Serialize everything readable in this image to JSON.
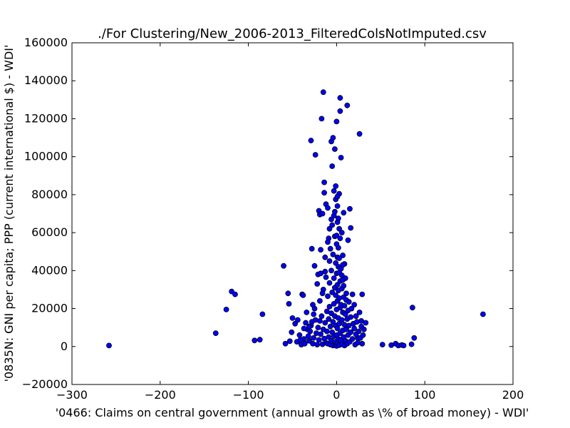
{
  "chart_data": {
    "type": "scatter",
    "title": "./For Clustering/New_2006-2013_FilteredColsNotImputed.csv",
    "xlabel": "'0466: Claims on central government  (annual growth as \\% of broad money) - WDI'",
    "ylabel": "'0835N: GNI per capita; PPP  (current international $) - WDI'",
    "xlim": [
      -300,
      200
    ],
    "ylim": [
      -20000,
      160000
    ],
    "xticks": [
      -300,
      -200,
      -100,
      0,
      100,
      200
    ],
    "xtick_labels": [
      "−300",
      "−200",
      "−100",
      "0",
      "100",
      "200"
    ],
    "yticks": [
      -20000,
      0,
      20000,
      40000,
      60000,
      80000,
      100000,
      120000,
      140000,
      160000
    ],
    "ytick_labels": [
      "−20000",
      "0",
      "20000",
      "40000",
      "60000",
      "80000",
      "100000",
      "120000",
      "140000",
      "160000"
    ],
    "grid": false,
    "marker_color": "#0000ff",
    "points": [
      [
        -258,
        500
      ],
      [
        -137,
        7000
      ],
      [
        -125,
        19500
      ],
      [
        -119,
        29000
      ],
      [
        -115,
        27500
      ],
      [
        -93,
        3200
      ],
      [
        -87,
        3600
      ],
      [
        -84,
        17000
      ],
      [
        -60,
        42500
      ],
      [
        -58,
        1500
      ],
      [
        -55,
        28000
      ],
      [
        -54,
        22500
      ],
      [
        -53,
        2800
      ],
      [
        -51,
        7500
      ],
      [
        -50,
        15000
      ],
      [
        -47,
        12000
      ],
      [
        -44,
        14000
      ],
      [
        -40,
        1000
      ],
      [
        -39,
        27500
      ],
      [
        -38,
        27000
      ],
      [
        -37,
        4000
      ],
      [
        -35,
        12500
      ],
      [
        -33,
        9000
      ],
      [
        -31,
        3000
      ],
      [
        -29,
        108500
      ],
      [
        -28,
        51500
      ],
      [
        -27,
        22000
      ],
      [
        -26,
        17000
      ],
      [
        -25,
        42500
      ],
      [
        -24,
        101000
      ],
      [
        -22,
        33000
      ],
      [
        -21,
        38000
      ],
      [
        -20,
        71500
      ],
      [
        -19,
        69500
      ],
      [
        -18,
        51000
      ],
      [
        -17,
        120000
      ],
      [
        -16,
        70000
      ],
      [
        -15,
        134000
      ],
      [
        -14,
        86500
      ],
      [
        -14,
        81000
      ],
      [
        -12,
        75000
      ],
      [
        -10,
        73000
      ],
      [
        -9,
        57000
      ],
      [
        -8,
        45000
      ],
      [
        -6,
        108000
      ],
      [
        -5,
        64000
      ],
      [
        -5,
        95000
      ],
      [
        -4,
        110000
      ],
      [
        -3,
        82000
      ],
      [
        -2,
        104000
      ],
      [
        -1,
        84500
      ],
      [
        -1,
        77500
      ],
      [
        0,
        118500
      ],
      [
        1,
        74000
      ],
      [
        1,
        65500
      ],
      [
        2,
        52000
      ],
      [
        3,
        80500
      ],
      [
        3,
        62000
      ],
      [
        4,
        131000
      ],
      [
        4,
        124000
      ],
      [
        5,
        99500
      ],
      [
        6,
        60000
      ],
      [
        7,
        48000
      ],
      [
        8,
        70500
      ],
      [
        9,
        43500
      ],
      [
        10,
        36000
      ],
      [
        12,
        127000
      ],
      [
        13,
        56000
      ],
      [
        15,
        72500
      ],
      [
        16,
        62500
      ],
      [
        18,
        27500
      ],
      [
        20,
        22000
      ],
      [
        22,
        16000
      ],
      [
        24,
        4500
      ],
      [
        26,
        112000
      ],
      [
        28,
        13500
      ],
      [
        29,
        27500
      ],
      [
        31,
        9000
      ],
      [
        33,
        12500
      ],
      [
        52,
        1000
      ],
      [
        62,
        700
      ],
      [
        67,
        1500
      ],
      [
        70,
        500
      ],
      [
        74,
        800
      ],
      [
        76,
        500
      ],
      [
        85,
        1200
      ],
      [
        86,
        20500
      ],
      [
        88,
        4500
      ],
      [
        166,
        17000
      ],
      [
        -45,
        2500
      ],
      [
        -42,
        6000
      ],
      [
        -36,
        1500
      ],
      [
        -34,
        18000
      ],
      [
        -32,
        5500
      ],
      [
        -30,
        8000
      ],
      [
        -29,
        11000
      ],
      [
        -27,
        1500
      ],
      [
        -26,
        4500
      ],
      [
        -25,
        20000
      ],
      [
        -24,
        14000
      ],
      [
        -23,
        7000
      ],
      [
        -22,
        1000
      ],
      [
        -21,
        10000
      ],
      [
        -20,
        3500
      ],
      [
        -19,
        24000
      ],
      [
        -18,
        6500
      ],
      [
        -17,
        16000
      ],
      [
        -16,
        1200
      ],
      [
        -15,
        9000
      ],
      [
        -15,
        30000
      ],
      [
        -14,
        4200
      ],
      [
        -13,
        12500
      ],
      [
        -13,
        39500
      ],
      [
        -12,
        2000
      ],
      [
        -11,
        18500
      ],
      [
        -11,
        8000
      ],
      [
        -10,
        26500
      ],
      [
        -10,
        1500
      ],
      [
        -9,
        14500
      ],
      [
        -9,
        5000
      ],
      [
        -8,
        33500
      ],
      [
        -8,
        21000
      ],
      [
        -7,
        1000
      ],
      [
        -7,
        10500
      ],
      [
        -6,
        40000
      ],
      [
        -6,
        17500
      ],
      [
        -6,
        3000
      ],
      [
        -5,
        28500
      ],
      [
        -5,
        7500
      ],
      [
        -4,
        48500
      ],
      [
        -4,
        13000
      ],
      [
        -4,
        500
      ],
      [
        -3,
        36000
      ],
      [
        -3,
        22500
      ],
      [
        -3,
        5500
      ],
      [
        -2,
        58000
      ],
      [
        -2,
        31000
      ],
      [
        -2,
        16000
      ],
      [
        -2,
        2500
      ],
      [
        -1,
        44000
      ],
      [
        -1,
        27000
      ],
      [
        -1,
        11000
      ],
      [
        -1,
        800
      ],
      [
        0,
        54000
      ],
      [
        0,
        38500
      ],
      [
        0,
        19500
      ],
      [
        0,
        6000
      ],
      [
        0,
        300
      ],
      [
        1,
        47000
      ],
      [
        1,
        32500
      ],
      [
        1,
        24000
      ],
      [
        1,
        9500
      ],
      [
        1,
        1800
      ],
      [
        2,
        42000
      ],
      [
        2,
        29500
      ],
      [
        2,
        15000
      ],
      [
        2,
        4000
      ],
      [
        3,
        39000
      ],
      [
        3,
        25500
      ],
      [
        3,
        12000
      ],
      [
        3,
        700
      ],
      [
        4,
        34500
      ],
      [
        4,
        20500
      ],
      [
        4,
        7000
      ],
      [
        5,
        41000
      ],
      [
        5,
        22000
      ],
      [
        5,
        3500
      ],
      [
        6,
        30500
      ],
      [
        6,
        14000
      ],
      [
        6,
        1200
      ],
      [
        7,
        35000
      ],
      [
        7,
        18000
      ],
      [
        7,
        8500
      ],
      [
        8,
        26000
      ],
      [
        8,
        5000
      ],
      [
        9,
        21500
      ],
      [
        9,
        11500
      ],
      [
        9,
        500
      ],
      [
        10,
        17000
      ],
      [
        10,
        3000
      ],
      [
        11,
        24500
      ],
      [
        11,
        9000
      ],
      [
        12,
        14500
      ],
      [
        12,
        1500
      ],
      [
        13,
        19000
      ],
      [
        13,
        6000
      ],
      [
        14,
        11000
      ],
      [
        15,
        2500
      ],
      [
        16,
        15500
      ],
      [
        16,
        7500
      ],
      [
        17,
        20000
      ],
      [
        18,
        4000
      ],
      [
        19,
        12000
      ],
      [
        20,
        9500
      ],
      [
        21,
        1000
      ],
      [
        22,
        6500
      ],
      [
        23,
        13000
      ],
      [
        24,
        2000
      ],
      [
        25,
        8000
      ],
      [
        26,
        18000
      ],
      [
        27,
        4500
      ],
      [
        28,
        10500
      ],
      [
        29,
        1500
      ],
      [
        30,
        6000
      ],
      [
        -28,
        13000
      ],
      [
        -31,
        10500
      ],
      [
        -37,
        9500
      ],
      [
        -41,
        3500
      ],
      [
        -19,
        13500
      ],
      [
        -12,
        36500
      ],
      [
        -8,
        62000
      ],
      [
        -7,
        51500
      ],
      [
        -3,
        69000
      ],
      [
        0,
        58500
      ],
      [
        3,
        46500
      ],
      [
        6,
        37500
      ],
      [
        8,
        32000
      ],
      [
        11,
        28000
      ],
      [
        14,
        23500
      ],
      [
        -16,
        28000
      ],
      [
        -18,
        38500
      ],
      [
        -13,
        47000
      ],
      [
        -10,
        55000
      ],
      [
        -6,
        67000
      ],
      [
        -2,
        71000
      ],
      [
        1,
        79000
      ],
      [
        2,
        67500
      ],
      [
        4,
        57000
      ],
      [
        7,
        43000
      ]
    ]
  }
}
